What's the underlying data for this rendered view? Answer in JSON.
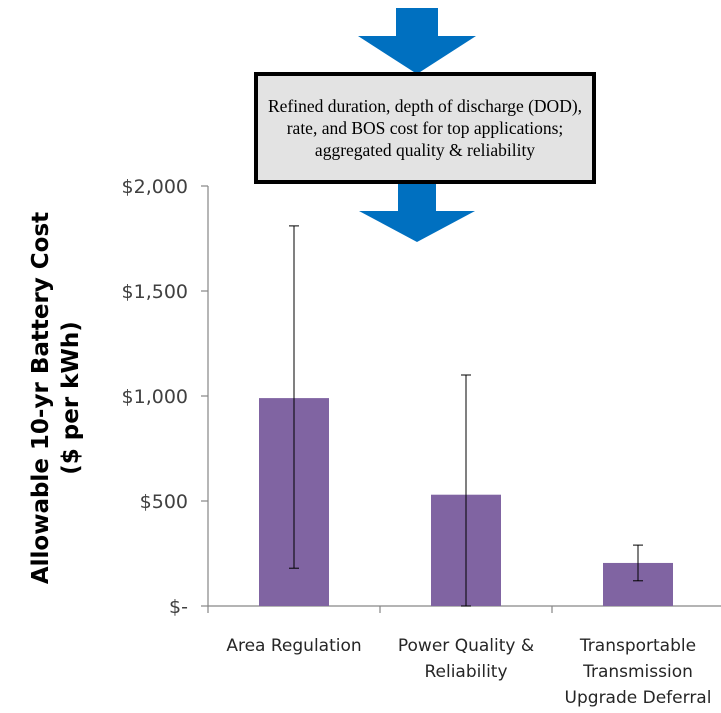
{
  "chart_data": {
    "type": "bar",
    "title": "",
    "ylabel_lines": [
      "Allowable 10-yr Battery Cost",
      "($ per kWh)"
    ],
    "xlabel": "",
    "categories": [
      [
        "Area Regulation"
      ],
      [
        "Power Quality &",
        "Reliability"
      ],
      [
        "Transportable",
        "Transmission",
        "Upgrade Deferral"
      ]
    ],
    "series": [
      {
        "values": [
          990,
          530,
          205
        ],
        "error_low": [
          180,
          0,
          120
        ],
        "error_high": [
          1810,
          1100,
          290
        ],
        "color": "#8064a2"
      }
    ],
    "ylim": [
      0,
      2000
    ],
    "yticks": [
      0,
      500,
      1000,
      1500,
      2000
    ],
    "ytick_labels": [
      "$-",
      "$500",
      "$1,000",
      "$1,500",
      "$2,000"
    ],
    "grid": false,
    "legend": "none"
  },
  "callout": {
    "text": "Refined duration, depth of discharge (DOD), rate, and BOS cost for top applications; aggregated quality & reliability",
    "arrow_color": "#0070c0",
    "fill_color": "#e3e3e3"
  }
}
